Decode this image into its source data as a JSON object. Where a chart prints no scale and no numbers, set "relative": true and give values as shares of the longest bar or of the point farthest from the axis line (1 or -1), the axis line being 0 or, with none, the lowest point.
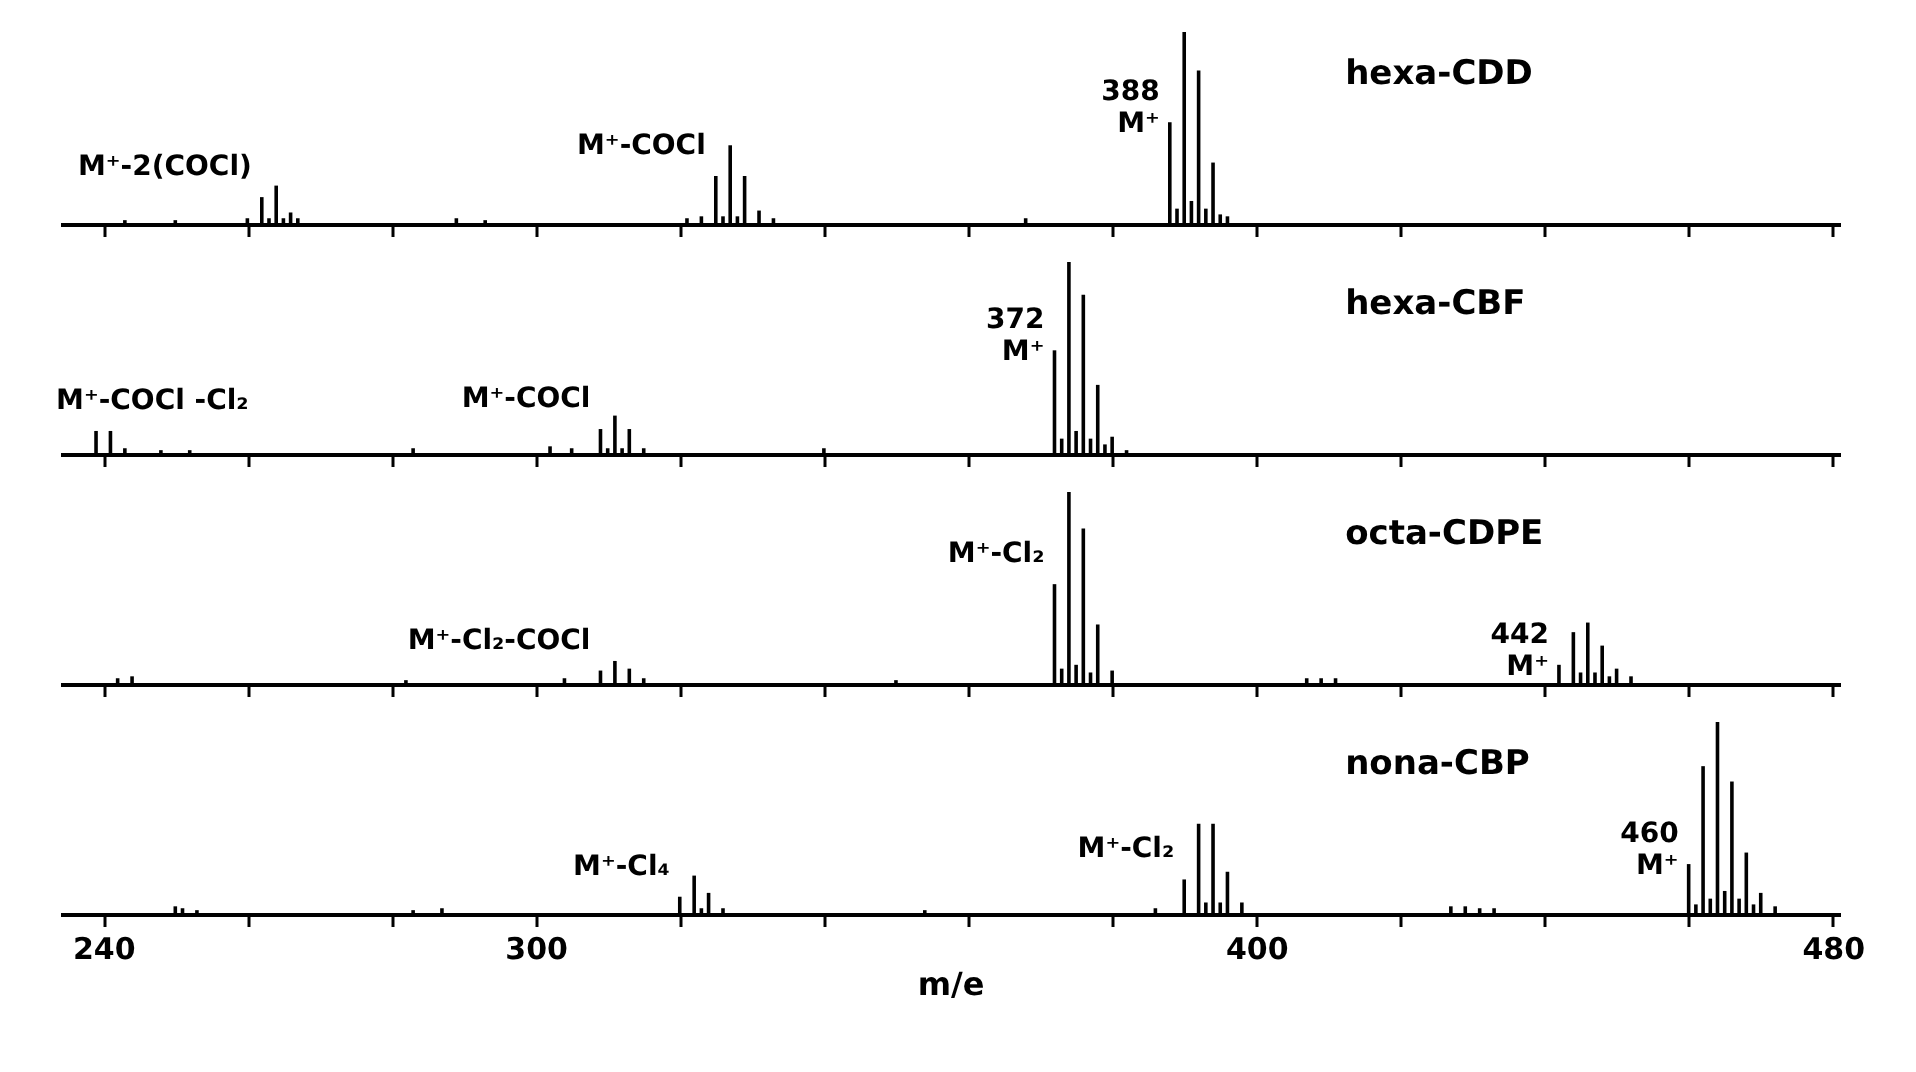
{
  "chart_data": [
    {
      "type": "bar",
      "relative": true,
      "title": "hexa-CDD",
      "color": "#000000",
      "xlim": [
        234,
        481
      ],
      "xticks": [
        240,
        {
          "value": 260,
          "label": null
        },
        {
          "value": 280,
          "label": null
        },
        300,
        {
          "value": 320,
          "label": null
        },
        {
          "value": 340,
          "label": null
        },
        {
          "value": 360,
          "label": null
        },
        {
          "value": 380,
          "label": null
        },
        400,
        {
          "value": 420,
          "label": null
        },
        {
          "value": 440,
          "label": null
        },
        {
          "value": 460,
          "label": null
        },
        480
      ],
      "tick_labels": false,
      "x": [
        243,
        250,
        260,
        262,
        263,
        264,
        265,
        266,
        267,
        289,
        293,
        321,
        323,
        325,
        326,
        327,
        328,
        329,
        331,
        333,
        368,
        388,
        389,
        390,
        391,
        392,
        393,
        394,
        395,
        396
      ],
      "values": [
        0.02,
        0.02,
        0.03,
        0.14,
        0.03,
        0.2,
        0.03,
        0.06,
        0.03,
        0.03,
        0.02,
        0.03,
        0.04,
        0.25,
        0.04,
        0.41,
        0.04,
        0.25,
        0.07,
        0.03,
        0.03,
        0.53,
        0.08,
        1,
        0.12,
        0.8,
        0.08,
        0.32,
        0.05,
        0.04
      ],
      "annotations": [
        {
          "text": "M⁺-2(COCl)",
          "x": 262,
          "y": 0.14
        },
        {
          "text": "M⁺-COCl",
          "x": 325,
          "y": 0.25
        },
        {
          "text": "388\nM⁺",
          "x": 388,
          "y": 0.53
        }
      ]
    },
    {
      "type": "bar",
      "relative": true,
      "title": "hexa-CBF",
      "color": "#000000",
      "xlim": [
        234,
        481
      ],
      "xticks": [
        240,
        {
          "value": 260,
          "label": null
        },
        {
          "value": 280,
          "label": null
        },
        300,
        {
          "value": 320,
          "label": null
        },
        {
          "value": 340,
          "label": null
        },
        {
          "value": 360,
          "label": null
        },
        {
          "value": 380,
          "label": null
        },
        400,
        {
          "value": 420,
          "label": null
        },
        {
          "value": 440,
          "label": null
        },
        {
          "value": 460,
          "label": null
        },
        480
      ],
      "tick_labels": false,
      "x": [
        239,
        241,
        243,
        248,
        252,
        283,
        302,
        305,
        309,
        310,
        311,
        312,
        313,
        315,
        340,
        372,
        373,
        374,
        375,
        376,
        377,
        378,
        379,
        380,
        382
      ],
      "values": [
        0.12,
        0.12,
        0.03,
        0.02,
        0.02,
        0.03,
        0.04,
        0.03,
        0.13,
        0.03,
        0.2,
        0.03,
        0.13,
        0.03,
        0.03,
        0.54,
        0.08,
        1,
        0.12,
        0.83,
        0.08,
        0.36,
        0.05,
        0.09,
        0.02
      ],
      "annotations": [
        {
          "text": "M⁺-COCl -Cl₂",
          "x": 239,
          "y": 0.12
        },
        {
          "text": "M⁺-COCl",
          "x": 309,
          "y": 0.13
        },
        {
          "text": "372\nM⁺",
          "x": 372,
          "y": 0.54
        }
      ]
    },
    {
      "type": "bar",
      "relative": true,
      "title": "octa-CDPE",
      "color": "#000000",
      "xlim": [
        234,
        481
      ],
      "xticks": [
        240,
        {
          "value": 260,
          "label": null
        },
        {
          "value": 280,
          "label": null
        },
        300,
        {
          "value": 320,
          "label": null
        },
        {
          "value": 340,
          "label": null
        },
        {
          "value": 360,
          "label": null
        },
        {
          "value": 380,
          "label": null
        },
        400,
        {
          "value": 420,
          "label": null
        },
        {
          "value": 440,
          "label": null
        },
        {
          "value": 460,
          "label": null
        },
        480
      ],
      "tick_labels": false,
      "x": [
        242,
        244,
        282,
        304,
        309,
        311,
        313,
        315,
        350,
        372,
        373,
        374,
        375,
        376,
        377,
        378,
        380,
        407,
        409,
        411,
        442,
        444,
        445,
        446,
        447,
        448,
        449,
        450,
        452
      ],
      "values": [
        0.03,
        0.04,
        0.02,
        0.03,
        0.07,
        0.12,
        0.08,
        0.03,
        0.02,
        0.52,
        0.08,
        1,
        0.1,
        0.81,
        0.06,
        0.31,
        0.07,
        0.03,
        0.03,
        0.03,
        0.1,
        0.27,
        0.06,
        0.32,
        0.06,
        0.2,
        0.04,
        0.08,
        0.04
      ],
      "annotations": [
        {
          "text": "M⁺-Cl₂-COCl",
          "x": 309,
          "y": 0.07
        },
        {
          "text": "M⁺-Cl₂",
          "x": 372,
          "y": 0.52
        },
        {
          "text": "442\nM⁺",
          "x": 442,
          "y": 0.1
        }
      ]
    },
    {
      "type": "bar",
      "relative": true,
      "title": "nona-CBP",
      "color": "#000000",
      "xlim": [
        234,
        481
      ],
      "xticks": [
        240,
        {
          "value": 260,
          "label": null
        },
        {
          "value": 280,
          "label": null
        },
        300,
        {
          "value": 320,
          "label": null
        },
        {
          "value": 340,
          "label": null
        },
        {
          "value": 360,
          "label": null
        },
        {
          "value": 380,
          "label": null
        },
        400,
        {
          "value": 420,
          "label": null
        },
        {
          "value": 440,
          "label": null
        },
        {
          "value": 460,
          "label": null
        },
        480
      ],
      "tick_labels": "x",
      "xlabel": "m/e",
      "x": [
        250,
        251,
        253,
        283,
        287,
        320,
        322,
        323,
        324,
        326,
        354,
        386,
        390,
        392,
        393,
        394,
        395,
        396,
        398,
        427,
        429,
        431,
        433,
        460,
        461,
        462,
        463,
        464,
        465,
        466,
        467,
        468,
        469,
        470,
        472
      ],
      "values": [
        0.04,
        0.03,
        0.02,
        0.02,
        0.03,
        0.09,
        0.2,
        0.03,
        0.11,
        0.03,
        0.02,
        0.03,
        0.18,
        0.47,
        0.06,
        0.47,
        0.06,
        0.22,
        0.06,
        0.04,
        0.04,
        0.03,
        0.03,
        0.26,
        0.05,
        0.77,
        0.08,
        1,
        0.12,
        0.69,
        0.08,
        0.32,
        0.05,
        0.11,
        0.04
      ],
      "annotations": [
        {
          "text": "M⁺-Cl₄",
          "x": 320,
          "y": 0.09
        },
        {
          "text": "M⁺-Cl₂",
          "x": 390,
          "y": 0.18
        },
        {
          "text": "460\nM⁺",
          "x": 460,
          "y": 0.26
        }
      ]
    }
  ]
}
